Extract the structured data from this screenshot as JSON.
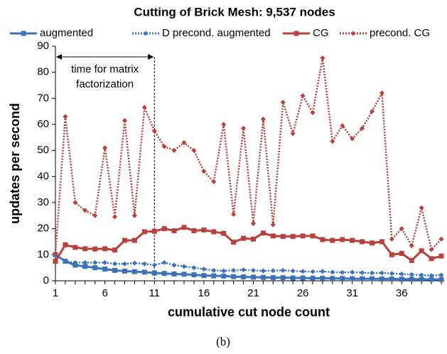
{
  "chart_data": {
    "type": "line",
    "title": "Cutting of Brick Mesh: 9,537 nodes",
    "x_label": "cumulative cut node count",
    "y_label": "updates per second",
    "caption": "(b)",
    "x": [
      1,
      2,
      3,
      4,
      5,
      6,
      7,
      8,
      9,
      10,
      11,
      12,
      13,
      14,
      15,
      16,
      17,
      18,
      19,
      20,
      21,
      22,
      23,
      24,
      25,
      26,
      27,
      28,
      29,
      30,
      31,
      32,
      33,
      34,
      35,
      36,
      37,
      38,
      39,
      40
    ],
    "xlim": [
      1,
      40
    ],
    "xticks": [
      1,
      6,
      11,
      16,
      21,
      26,
      31,
      36
    ],
    "ylim": [
      0,
      90
    ],
    "yticks": [
      0,
      10,
      20,
      30,
      40,
      50,
      60,
      70,
      80,
      90
    ],
    "grid": false,
    "legend": "top",
    "annotation": {
      "text": [
        "time for matrix",
        "factorization"
      ],
      "x_range": [
        1,
        11
      ]
    },
    "series": [
      {
        "name": "augmented",
        "color": "#3d72b8",
        "line_style": "solid",
        "marker": "square",
        "values": [
          10,
          7.5,
          6,
          5.5,
          5,
          4.5,
          4,
          3.7,
          3.5,
          3.3,
          3,
          2.8,
          2.6,
          2.5,
          2.3,
          2,
          1.9,
          1.8,
          1.6,
          1.5,
          1.4,
          1.3,
          1.2,
          1.2,
          1.1,
          1.1,
          1,
          1,
          0.9,
          0.9,
          0.8,
          0.8,
          0.8,
          0.7,
          0.7,
          0.6,
          0.6,
          0.6,
          0.5,
          0.5
        ]
      },
      {
        "name": "D precond. augmented",
        "color": "#3d72b8",
        "line_style": "dotted",
        "marker": "diamond",
        "values": [
          10,
          7.5,
          7,
          7,
          7,
          7,
          6.5,
          6.5,
          6.8,
          6.5,
          6,
          7,
          6,
          5.5,
          5,
          4.5,
          4,
          3.8,
          4,
          4.2,
          4,
          3.8,
          3.9,
          4,
          3.8,
          3.6,
          3.5,
          3.6,
          3.3,
          3.2,
          3.3,
          3.1,
          3,
          3,
          2.8,
          2.6,
          2.4,
          2.2,
          2,
          2.2
        ]
      },
      {
        "name": "CG",
        "color": "#b8403f",
        "line_style": "solid",
        "marker": "square",
        "values": [
          7.5,
          13.8,
          12.8,
          12.3,
          12.2,
          12.3,
          11.8,
          15.5,
          15.5,
          18.8,
          19,
          20,
          19.2,
          20.5,
          19.2,
          19.5,
          18.8,
          18.2,
          14.8,
          16.3,
          16,
          18.3,
          17.2,
          17,
          17,
          17.2,
          17.2,
          15.8,
          15.5,
          15.8,
          15.5,
          15,
          14.5,
          15,
          10,
          10.5,
          7.8,
          11.5,
          8.5,
          9.5
        ]
      },
      {
        "name": "precond. CG",
        "color": "#b8403f",
        "line_style": "dotted",
        "marker": "diamond",
        "values": [
          10.5,
          63,
          30,
          27,
          25,
          51,
          24.5,
          61.5,
          25,
          66.5,
          57.5,
          51.5,
          50,
          53,
          50,
          42,
          38,
          60,
          25.5,
          58.5,
          22,
          62,
          21.5,
          68.5,
          56.5,
          71,
          64.5,
          85.5,
          53.5,
          59.5,
          54.5,
          58.5,
          65,
          72,
          16,
          20,
          13.5,
          28,
          12,
          16
        ]
      }
    ]
  }
}
